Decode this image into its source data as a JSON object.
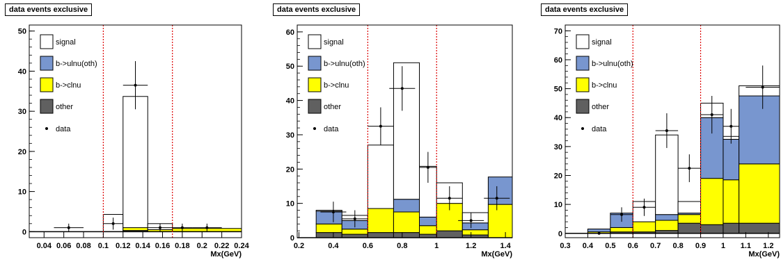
{
  "colors": {
    "signal": "#ffffff",
    "bulnu": "#7896cf",
    "bclnu": "#ffff00",
    "other": "#606060",
    "cut_line": "#dd0000"
  },
  "legend": [
    {
      "key": "signal",
      "label": "signal"
    },
    {
      "key": "bulnu",
      "label": "b->ulnu(oth)"
    },
    {
      "key": "bclnu",
      "label": "b->clnu"
    },
    {
      "key": "other",
      "label": "other"
    },
    {
      "key": "data",
      "label": "data"
    }
  ],
  "chart_data": [
    {
      "type": "bar",
      "title": "data events exclusive",
      "xlabel": "Mx(GeV)",
      "xlim": [
        0.025,
        0.24
      ],
      "ylim": [
        -1.5,
        51.5
      ],
      "xticks": [
        0.04,
        0.06,
        0.08,
        0.1,
        0.12,
        0.14,
        0.16,
        0.18,
        0.2,
        0.22,
        0.24
      ],
      "xtick_labels": [
        "0.04",
        "0.06",
        "0.08",
        "0.1",
        "0.12",
        "0.14",
        "0.16",
        "0.18",
        "0.2",
        "0.22",
        "0.24"
      ],
      "yticks": [
        0,
        10,
        20,
        30,
        40,
        50
      ],
      "cut_lines": [
        0.1,
        0.17
      ],
      "bin_edges": [
        0.025,
        0.1,
        0.12,
        0.145,
        0.17,
        0.24
      ],
      "stack": {
        "other": [
          0,
          0,
          0.3,
          0,
          0
        ],
        "bclnu": [
          0,
          0,
          0.7,
          0.5,
          0.8
        ],
        "bulnu": [
          0,
          0,
          0,
          0,
          0
        ],
        "signal": [
          0,
          4.3,
          32.7,
          1.5,
          0
        ]
      },
      "data_points": [
        {
          "x": 0.065,
          "y": 1,
          "xerr": 0.015,
          "yerr": 1
        },
        {
          "x": 0.11,
          "y": 2,
          "xerr": 0.01,
          "yerr": 1.5
        },
        {
          "x": 0.1325,
          "y": 36.5,
          "xerr": 0.0125,
          "yerr": 6
        },
        {
          "x": 0.1575,
          "y": 1,
          "xerr": 0.0125,
          "yerr": 1
        },
        {
          "x": 0.18,
          "y": 1,
          "xerr": 0.01,
          "yerr": 1
        },
        {
          "x": 0.205,
          "y": 1,
          "xerr": 0.015,
          "yerr": 1
        }
      ]
    },
    {
      "type": "bar",
      "title": "data events exclusive",
      "xlabel": "Mx(GeV)",
      "xlim": [
        0.19,
        1.44
      ],
      "ylim": [
        0,
        62
      ],
      "xticks": [
        0.2,
        0.4,
        0.6,
        0.8,
        1,
        1.2,
        1.4
      ],
      "xtick_labels": [
        "0.2",
        "0.4",
        "0.6",
        "0.8",
        "1",
        "1.2",
        "1.4"
      ],
      "yticks": [
        0,
        10,
        20,
        30,
        40,
        50,
        60
      ],
      "cut_lines": [
        0.6,
        1.0
      ],
      "bin_edges": [
        0.3,
        0.45,
        0.6,
        0.75,
        0.9,
        1.0,
        1.15,
        1.3,
        1.45
      ],
      "stack": {
        "other": [
          1.5,
          1,
          1.5,
          1.5,
          1,
          2,
          0.8,
          0
        ],
        "bclnu": [
          2.5,
          1.5,
          7,
          6,
          2.5,
          8,
          1.5,
          9.7
        ],
        "bulnu": [
          3.7,
          2.5,
          0,
          3.7,
          2.5,
          0,
          2,
          8
        ],
        "signal": [
          0.3,
          1.5,
          18.5,
          39.8,
          14.8,
          6,
          3,
          0
        ]
      },
      "data_points": [
        {
          "x": 0.4,
          "y": 7.5,
          "xerr": 0.075,
          "yerr": 3
        },
        {
          "x": 0.525,
          "y": 5.5,
          "xerr": 0.075,
          "yerr": 2.5
        },
        {
          "x": 0.675,
          "y": 32.5,
          "xerr": 0.075,
          "yerr": 5.5
        },
        {
          "x": 0.8,
          "y": 43.5,
          "xerr": 0.075,
          "yerr": 6.5
        },
        {
          "x": 0.95,
          "y": 20.5,
          "xerr": 0.05,
          "yerr": 4.5
        },
        {
          "x": 1.075,
          "y": 11.5,
          "xerr": 0.075,
          "yerr": 3.5
        },
        {
          "x": 1.2,
          "y": 5,
          "xerr": 0.075,
          "yerr": 2.2
        },
        {
          "x": 1.35,
          "y": 11.5,
          "xerr": 0.075,
          "yerr": 3.5
        }
      ]
    },
    {
      "type": "bar",
      "title": "data events exclusive",
      "xlabel": "Mx(GeV)",
      "xlim": [
        0.3,
        1.25
      ],
      "ylim": [
        -1.5,
        72
      ],
      "xticks": [
        0.3,
        0.4,
        0.5,
        0.6,
        0.7,
        0.8,
        0.9,
        1,
        1.1,
        1.2
      ],
      "xtick_labels": [
        "0.3",
        "0.4",
        "0.5",
        "0.6",
        "0.7",
        "0.8",
        "0.9",
        "1",
        "1.1",
        "1.2"
      ],
      "yticks": [
        0,
        10,
        20,
        30,
        40,
        50,
        60,
        70
      ],
      "cut_lines": [
        0.6,
        0.9
      ],
      "bin_edges": [
        0.3,
        0.4,
        0.5,
        0.6,
        0.7,
        0.8,
        0.9,
        1.0,
        1.07,
        1.25
      ],
      "stack": {
        "other": [
          0,
          0,
          0.5,
          0.5,
          1,
          3.5,
          3,
          3.5,
          3.5
        ],
        "bclnu": [
          0,
          0.5,
          1.5,
          3.5,
          3.5,
          3,
          16,
          15,
          20.5
        ],
        "bulnu": [
          0,
          1,
          5,
          0,
          2,
          0.5,
          21,
          14,
          23.5
        ],
        "signal": [
          0,
          0,
          0,
          7,
          27.5,
          4,
          5,
          1,
          3.5
        ]
      },
      "data_points": [
        {
          "x": 0.45,
          "y": 0,
          "xerr": 0,
          "yerr": 0
        },
        {
          "x": 0.55,
          "y": 6.5,
          "xerr": 0.05,
          "yerr": 2.5
        },
        {
          "x": 0.65,
          "y": 9,
          "xerr": 0.05,
          "yerr": 3
        },
        {
          "x": 0.75,
          "y": 35.5,
          "xerr": 0.05,
          "yerr": 6
        },
        {
          "x": 0.85,
          "y": 22.5,
          "xerr": 0.05,
          "yerr": 4.8
        },
        {
          "x": 0.95,
          "y": 41,
          "xerr": 0.05,
          "yerr": 6.5
        },
        {
          "x": 1.035,
          "y": 37,
          "xerr": 0.035,
          "yerr": 6
        },
        {
          "x": 1.175,
          "y": 50.5,
          "xerr": 0.075,
          "yerr": 7.5
        }
      ]
    }
  ]
}
